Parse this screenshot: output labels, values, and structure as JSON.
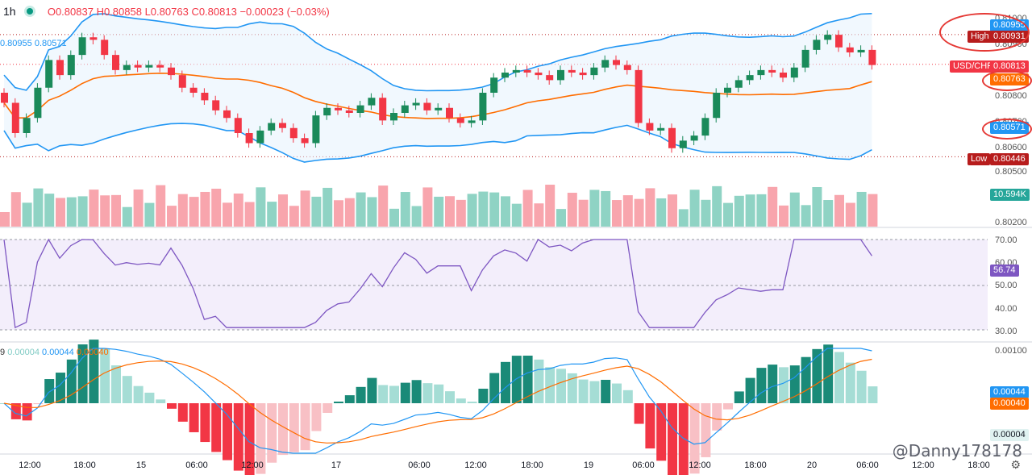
{
  "header": {
    "timeframe": "1h",
    "open": "O0.80837",
    "high": "H0.80858",
    "low": "L0.80763",
    "close": "C0.80813",
    "change": "−0.00023 (−0.03%)"
  },
  "indicators": {
    "bb_upper": "0.80955",
    "bb_lower": "0.80571",
    "macd_prefix": "9",
    "macd_hist": "0.00004",
    "macd_line": "0.00044",
    "macd_signal": "0.00040"
  },
  "price_tags": {
    "high_label": "High",
    "high_value": "0.80931",
    "bb_upper_value": "0.80955",
    "symbol": "USD/CHF",
    "last_price": "0.80813",
    "basis_value": "0.80763",
    "bb_lower_value": "0.80571",
    "low_label": "Low",
    "low_value": "0.80446",
    "volume_value": "10.594K",
    "rsi_value": "56.74",
    "macd_value": "0.00044",
    "signal_value": "0.00040",
    "macd_hist_value": "0.00004"
  },
  "price_axis": [
    "0.81000",
    "0.80900",
    "0.80800",
    "0.80700",
    "0.80600",
    "0.80500",
    "0.80400",
    "0.80200"
  ],
  "rsi_axis": [
    "70.00",
    "60.00",
    "50.00",
    "40.00",
    "30.00"
  ],
  "macd_axis": [
    "0.00100"
  ],
  "time_axis": [
    "12:00",
    "18:00",
    "15",
    "06:00",
    "12:00",
    "17",
    "06:00",
    "12:00",
    "18:00",
    "19",
    "06:00",
    "12:00",
    "18:00",
    "20",
    "06:00",
    "12:00",
    "18:00"
  ],
  "watermark": "@Danny178178",
  "colors": {
    "up": "#26a69a",
    "up_dark": "#1a8a5a",
    "down": "#f23645",
    "bb": "#2196f3",
    "basis": "#ff6d00",
    "rsi": "#7e57c2"
  },
  "chart_data": [
    {
      "type": "candlestick",
      "symbol": "USD/CHF",
      "timeframe": "1h",
      "ylim": [
        0.8038,
        0.8102
      ],
      "ohlc_close": [
        0.8066,
        0.8054,
        0.806,
        0.8072,
        0.8083,
        0.8077,
        0.8085,
        0.8092,
        0.8091,
        0.8085,
        0.8079,
        0.8081,
        0.808,
        0.8081,
        0.808,
        0.8077,
        0.8072,
        0.807,
        0.8067,
        0.8063,
        0.806,
        0.8054,
        0.805,
        0.8055,
        0.8058,
        0.8056,
        0.8052,
        0.805,
        0.8061,
        0.8064,
        0.8063,
        0.8062,
        0.8065,
        0.8068,
        0.8059,
        0.8062,
        0.8065,
        0.8066,
        0.8063,
        0.8064,
        0.806,
        0.8058,
        0.8059,
        0.807,
        0.8076,
        0.8078,
        0.8079,
        0.8078,
        0.8077,
        0.8075,
        0.8079,
        0.8078,
        0.8077,
        0.808,
        0.8083,
        0.8081,
        0.8079,
        0.8058,
        0.8055,
        0.8056,
        0.8048,
        0.8051,
        0.8053,
        0.806,
        0.807,
        0.8072,
        0.8075,
        0.8077,
        0.8079,
        0.8078,
        0.8076,
        0.808,
        0.8087,
        0.8091,
        0.8093,
        0.8088,
        0.8086,
        0.8087,
        0.8081
      ],
      "bb_upper_last": 0.80955,
      "bb_basis_last": 0.80763,
      "bb_lower_last": 0.80571,
      "high_marker": 0.80931,
      "low_marker": 0.80446
    },
    {
      "type": "bar",
      "name": "Volume",
      "last_value": "10.594K"
    },
    {
      "type": "line",
      "name": "RSI",
      "ylim": [
        30,
        70
      ],
      "last_value": 56.74
    },
    {
      "type": "line+bar",
      "name": "MACD",
      "macd": 0.00044,
      "signal": 0.0004,
      "histogram": 4e-05
    }
  ]
}
